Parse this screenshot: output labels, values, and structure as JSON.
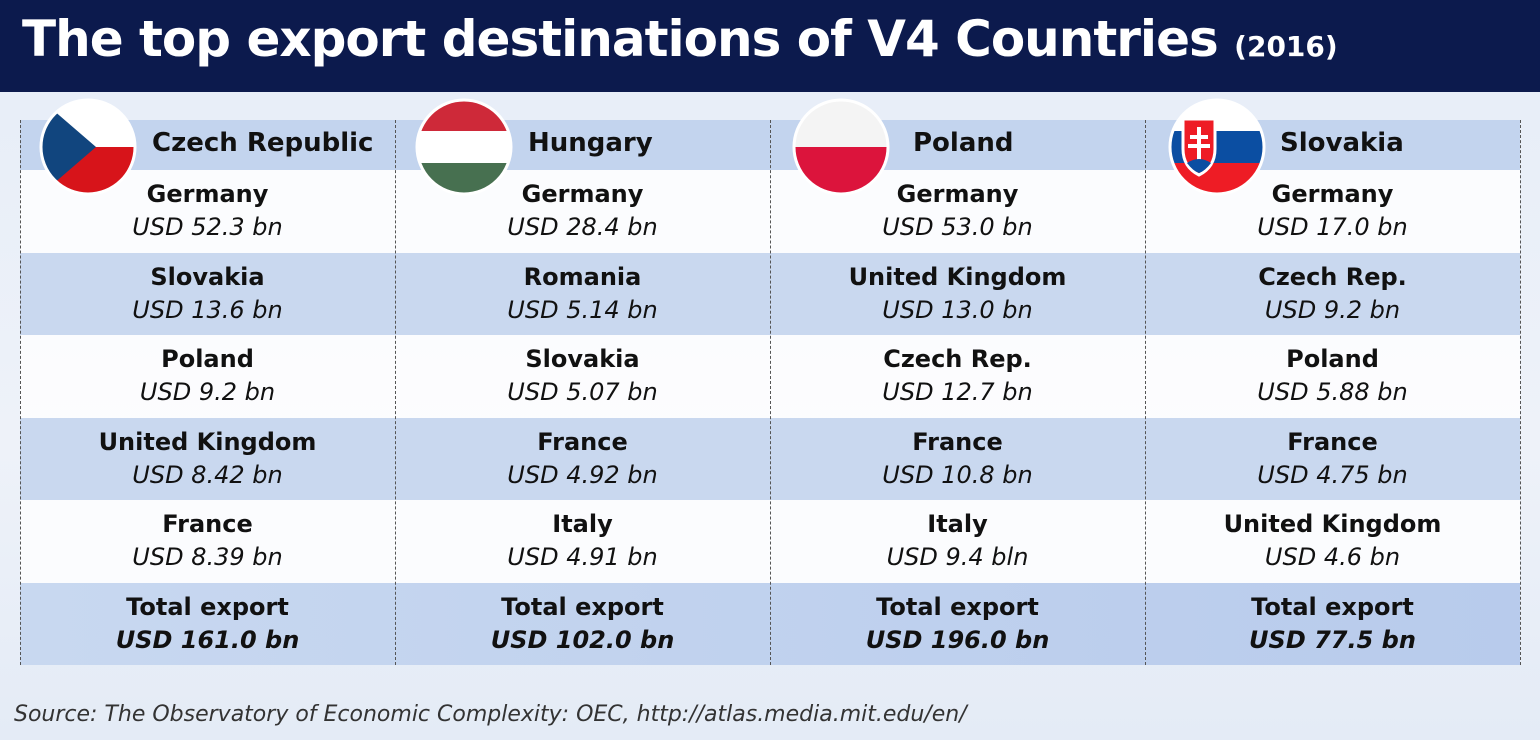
{
  "header": {
    "title": "The top export destinations of V4 Countries",
    "subtitle": "(2016)"
  },
  "table": {
    "columns": [
      {
        "country": "Czech Republic",
        "rows": [
          {
            "destination": "Germany",
            "value": "USD 52.3 bn"
          },
          {
            "destination": "Slovakia",
            "value": "USD 13.6 bn"
          },
          {
            "destination": "Poland",
            "value": "USD 9.2 bn"
          },
          {
            "destination": "United Kingdom",
            "value": "USD 8.42 bn"
          },
          {
            "destination": "France",
            "value": "USD 8.39 bn"
          }
        ],
        "total_label": "Total export",
        "total_value": "USD 161.0 bn"
      },
      {
        "country": "Hungary",
        "rows": [
          {
            "destination": "Germany",
            "value": "USD 28.4 bn"
          },
          {
            "destination": "Romania",
            "value": "USD 5.14 bn"
          },
          {
            "destination": "Slovakia",
            "value": "USD 5.07 bn"
          },
          {
            "destination": "France",
            "value": "USD 4.92 bn"
          },
          {
            "destination": "Italy",
            "value": "USD 4.91 bn"
          }
        ],
        "total_label": "Total export",
        "total_value": "USD 102.0 bn"
      },
      {
        "country": "Poland",
        "rows": [
          {
            "destination": "Germany",
            "value": "USD 53.0 bn"
          },
          {
            "destination": "United Kingdom",
            "value": "USD 13.0 bn"
          },
          {
            "destination": "Czech Rep.",
            "value": "USD 12.7 bn"
          },
          {
            "destination": "France",
            "value": "USD 10.8 bn"
          },
          {
            "destination": "Italy",
            "value": "USD 9.4 bln"
          }
        ],
        "total_label": "Total export",
        "total_value": "USD 196.0 bn"
      },
      {
        "country": "Slovakia",
        "rows": [
          {
            "destination": "Germany",
            "value": "USD 17.0 bn"
          },
          {
            "destination": "Czech Rep.",
            "value": "USD 9.2 bn"
          },
          {
            "destination": "Poland",
            "value": "USD 5.88 bn"
          },
          {
            "destination": "France",
            "value": "USD 4.75 bn"
          },
          {
            "destination": "United Kingdom",
            "value": "USD 4.6 bn"
          }
        ],
        "total_label": "Total export",
        "total_value": "USD 77.5 bn"
      }
    ]
  },
  "source": "Source: The Observatory of Economic Complexity: OEC, http://atlas.media.mit.edu/en/"
}
